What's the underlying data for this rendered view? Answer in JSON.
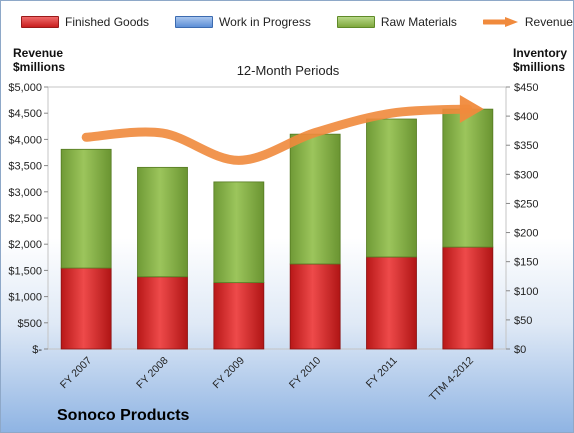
{
  "chart_data": {
    "type": "bar",
    "title": "12-Month Periods",
    "company": "Sonoco Products",
    "left_axis_title": [
      "Revenue",
      "$millions"
    ],
    "right_axis_title": [
      "Inventory",
      "$millions"
    ],
    "categories": [
      "FY 2007",
      "FY 2008",
      "FY 2009",
      "FY 2010",
      "FY 2011",
      "TTM 4-2012"
    ],
    "left_ticks": [
      "$-",
      "$500",
      "$1,000",
      "$1,500",
      "$2,000",
      "$2,500",
      "$3,000",
      "$3,500",
      "$4,000",
      "$4,500",
      "$5,000"
    ],
    "right_ticks": [
      "$0",
      "$50",
      "$100",
      "$150",
      "$200",
      "$250",
      "$300",
      "$350",
      "$400",
      "$450"
    ],
    "left_ylim": [
      0,
      5000
    ],
    "right_ylim": [
      0,
      450
    ],
    "legend_position": "top",
    "series": [
      {
        "name": "Finished Goods",
        "kind": "stacked-bar",
        "axis": "right",
        "color": "#d12b2b",
        "values": [
          139,
          124,
          114,
          146,
          158,
          175
        ]
      },
      {
        "name": "Work in Progress",
        "kind": "stacked-bar",
        "axis": "right",
        "color": "#6f9ee0",
        "values": [
          0,
          0,
          0,
          0,
          0,
          0
        ]
      },
      {
        "name": "Raw Materials",
        "kind": "stacked-bar",
        "axis": "right",
        "color": "#8ab04a",
        "values": [
          204,
          188,
          173,
          223,
          237,
          237
        ]
      },
      {
        "name": "Revenue",
        "kind": "line",
        "axis": "left",
        "color": "#f08a3c",
        "values": [
          4040,
          4120,
          3600,
          4130,
          4500,
          4580
        ]
      }
    ]
  }
}
